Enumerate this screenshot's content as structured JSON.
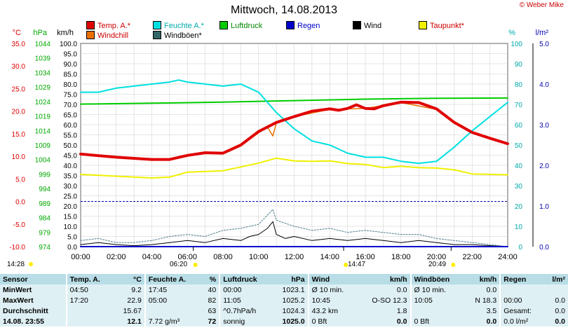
{
  "title": "Mittwoch, 14.08.2013",
  "copyright": "© Weber Mike",
  "legend": [
    {
      "label": "Temp. A.*",
      "color": "#e00000"
    },
    {
      "label": "Feuchte A.*",
      "color": "#00e0e0"
    },
    {
      "label": "Luftdruck",
      "color": "#00cc00"
    },
    {
      "label": "Regen",
      "color": "#0000cc"
    },
    {
      "label": "Wind",
      "color": "#000000"
    },
    {
      "label": "Taupunkt*",
      "color": "#f0f000"
    },
    {
      "label": "Windchill",
      "color": "#e87000"
    },
    {
      "label": "Windböen*",
      "color": "#336666"
    }
  ],
  "axis_headers": {
    "temp": "°C",
    "press": "hPa",
    "wind": "km/h",
    "hum": "%",
    "rain": "l/m²"
  },
  "chart_data": {
    "type": "line",
    "x_labels": [
      "00:00",
      "02:00",
      "04:00",
      "06:00",
      "08:00",
      "10:00",
      "12:00",
      "14:00",
      "16:00",
      "18:00",
      "20:00",
      "22:00",
      "24:00"
    ],
    "x_range_hours": [
      0,
      24
    ],
    "temp_axis": {
      "min": -10,
      "max": 35,
      "step": 5,
      "labels": [
        "-10.0",
        "-5.0",
        "0.0",
        "5.0",
        "10.0",
        "15.0",
        "20.0",
        "25.0",
        "30.0",
        "35.0"
      ]
    },
    "pressure_axis": {
      "labels": [
        "974",
        "979",
        "984",
        "989",
        "994",
        "999",
        "1004",
        "1009",
        "1014",
        "1019",
        "1024",
        "1029",
        "1034",
        "1039",
        "1044"
      ]
    },
    "wind_axis": {
      "min": 0,
      "max": 100,
      "step": 5
    },
    "humidity_axis": {
      "min": 0,
      "max": 100,
      "labels": [
        "0",
        "10",
        "20",
        "30",
        "40",
        "50",
        "60",
        "70",
        "80",
        "90",
        "100"
      ]
    },
    "rain_axis": {
      "labels": [
        "0.0",
        "1.0",
        "2.0",
        "3.0",
        "4.0",
        "5.0"
      ]
    },
    "series": [
      {
        "name": "Temp. A.*",
        "color": "#e00000",
        "axis": "temp",
        "width": 4,
        "points": [
          [
            0,
            10.5
          ],
          [
            2,
            9.8
          ],
          [
            4,
            9.3
          ],
          [
            5,
            9.3
          ],
          [
            6,
            10.2
          ],
          [
            7,
            10.8
          ],
          [
            8,
            10.7
          ],
          [
            9,
            12.5
          ],
          [
            10,
            15.5
          ],
          [
            11,
            17.5
          ],
          [
            12,
            18.8
          ],
          [
            13,
            20
          ],
          [
            14,
            20.5
          ],
          [
            14.5,
            20.2
          ],
          [
            15,
            20.6
          ],
          [
            15.5,
            21.4
          ],
          [
            16,
            20.6
          ],
          [
            16.5,
            20.5
          ],
          [
            17,
            21.2
          ],
          [
            18,
            22.0
          ],
          [
            19,
            21.9
          ],
          [
            20,
            20.5
          ],
          [
            21,
            17.5
          ],
          [
            22,
            15.3
          ],
          [
            23,
            14.0
          ],
          [
            24,
            12.8
          ]
        ]
      },
      {
        "name": "Windchill",
        "color": "#e87000",
        "axis": "temp",
        "width": 1.5,
        "points": [
          [
            9,
            12.4
          ],
          [
            10,
            15.2
          ],
          [
            10.5,
            16.5
          ],
          [
            10.8,
            14.5
          ],
          [
            11,
            17.4
          ],
          [
            12,
            18.8
          ],
          [
            14,
            20.4
          ],
          [
            16,
            20.6
          ],
          [
            18,
            21.9
          ],
          [
            20,
            20.4
          ],
          [
            21,
            17.4
          ],
          [
            22,
            15.2
          ],
          [
            24,
            12.7
          ]
        ]
      },
      {
        "name": "Feuchte A.*",
        "color": "#00e0e0",
        "axis": "hum",
        "width": 2,
        "points": [
          [
            0,
            76
          ],
          [
            1,
            76
          ],
          [
            2,
            78
          ],
          [
            3,
            79
          ],
          [
            4,
            80
          ],
          [
            5,
            81
          ],
          [
            5.5,
            82
          ],
          [
            6,
            81
          ],
          [
            7,
            80
          ],
          [
            8,
            79
          ],
          [
            9,
            80
          ],
          [
            10,
            76
          ],
          [
            11,
            66
          ],
          [
            12,
            58
          ],
          [
            13,
            52
          ],
          [
            14,
            50
          ],
          [
            15,
            46
          ],
          [
            16,
            44
          ],
          [
            17,
            44
          ],
          [
            18,
            42
          ],
          [
            19,
            41
          ],
          [
            20,
            42
          ],
          [
            21,
            49
          ],
          [
            22,
            57
          ],
          [
            23,
            64
          ],
          [
            24,
            71
          ]
        ]
      },
      {
        "name": "Luftdruck",
        "color": "#00cc00",
        "axis": "press",
        "width": 2,
        "points": [
          [
            0,
            1023.1
          ],
          [
            4,
            1023.4
          ],
          [
            8,
            1023.8
          ],
          [
            12,
            1024.3
          ],
          [
            16,
            1024.8
          ],
          [
            20,
            1025.1
          ],
          [
            24,
            1025.2
          ]
        ]
      },
      {
        "name": "Taupunkt*",
        "color": "#f0f000",
        "axis": "temp",
        "width": 2,
        "points": [
          [
            0,
            6.0
          ],
          [
            2,
            5.6
          ],
          [
            4,
            5.2
          ],
          [
            5,
            5.4
          ],
          [
            6,
            6.5
          ],
          [
            8,
            6.8
          ],
          [
            10,
            8.5
          ],
          [
            11,
            9.6
          ],
          [
            12,
            9.0
          ],
          [
            13,
            8.9
          ],
          [
            14,
            9.0
          ],
          [
            15,
            8.4
          ],
          [
            16,
            8.2
          ],
          [
            17,
            7.5
          ],
          [
            18,
            7.8
          ],
          [
            19,
            7.5
          ],
          [
            20,
            7.4
          ],
          [
            21,
            7.0
          ],
          [
            22,
            6.1
          ],
          [
            23,
            6.0
          ],
          [
            24,
            5.9
          ]
        ]
      },
      {
        "name": "Wind",
        "color": "#000000",
        "axis": "wind",
        "width": 1,
        "points": [
          [
            0,
            1
          ],
          [
            1,
            2
          ],
          [
            2,
            1
          ],
          [
            3,
            0.5
          ],
          [
            4,
            1
          ],
          [
            5,
            2
          ],
          [
            6,
            3
          ],
          [
            7,
            2
          ],
          [
            8,
            4
          ],
          [
            9,
            3
          ],
          [
            9.5,
            5
          ],
          [
            10,
            6
          ],
          [
            10.5,
            9
          ],
          [
            10.8,
            12.3
          ],
          [
            11,
            6
          ],
          [
            11.5,
            4
          ],
          [
            12,
            5
          ],
          [
            13,
            3
          ],
          [
            14,
            4
          ],
          [
            15,
            3
          ],
          [
            16,
            4
          ],
          [
            17,
            3
          ],
          [
            18,
            2
          ],
          [
            19,
            3
          ],
          [
            20,
            2
          ],
          [
            21,
            1
          ],
          [
            22,
            1
          ],
          [
            23,
            0.5
          ],
          [
            24,
            0
          ]
        ]
      },
      {
        "name": "Windböen*",
        "color": "#4a7a8a",
        "axis": "wind",
        "width": 1,
        "dash": "2,2",
        "points": [
          [
            0,
            3
          ],
          [
            1,
            4
          ],
          [
            2,
            2
          ],
          [
            3,
            2
          ],
          [
            4,
            3
          ],
          [
            5,
            5
          ],
          [
            6,
            6
          ],
          [
            7,
            5
          ],
          [
            8,
            8
          ],
          [
            9,
            9
          ],
          [
            10,
            11
          ],
          [
            10.8,
            18.3
          ],
          [
            11,
            13
          ],
          [
            12,
            10
          ],
          [
            13,
            8
          ],
          [
            14,
            9
          ],
          [
            15,
            7
          ],
          [
            16,
            8
          ],
          [
            17,
            7
          ],
          [
            18,
            6
          ],
          [
            19,
            6
          ],
          [
            20,
            4
          ],
          [
            21,
            3
          ],
          [
            22,
            2
          ],
          [
            23,
            1
          ],
          [
            24,
            0
          ]
        ]
      },
      {
        "name": "Regen",
        "color": "#0000cc",
        "axis": "rain",
        "width": 2,
        "points": [
          [
            0,
            0
          ],
          [
            24,
            0
          ]
        ]
      }
    ],
    "zero_line_temp": 0,
    "markers": [
      {
        "time": "14:28",
        "hour": 0
      },
      {
        "time": "06:20",
        "hour": 6.33
      },
      {
        "time": "14:47",
        "hour": 14.78
      },
      {
        "time": "20:49",
        "hour": 20.82
      }
    ]
  },
  "stats": {
    "headers": [
      "Sensor",
      "Temp. A.",
      "°C",
      "Feuchte A.",
      "%",
      "Luftdruck",
      "hPa",
      "Wind",
      "km/h",
      "Windböen",
      "km/h",
      "Regen",
      "l/m²"
    ],
    "rows": [
      [
        "MinWert",
        "04:50",
        "9.2",
        "17:45",
        "40",
        "00:00",
        "1023.1",
        "Ø 10 min.",
        "0.0",
        "Ø 10 min.",
        "0.0",
        "",
        ""
      ],
      [
        "MaxWert",
        "17:20",
        "22.9",
        "05:00",
        "82",
        "11:05",
        "1025.2",
        "10:45",
        "O-SO 12.3",
        "10:05",
        "N 18.3",
        "00:00",
        "0.0"
      ],
      [
        "Durchschnitt",
        "",
        "15.67",
        "",
        "63",
        "^0.7hPa/h",
        "1024.3",
        "43.2 km",
        "1.8",
        "",
        "3.5",
        "Gesamt:",
        "0.0"
      ],
      [
        "14.08.  23:55",
        "",
        "12.1",
        "7.72 g/m³",
        "72",
        "sonnig",
        "1025.0",
        "0 Bft",
        "0.0",
        "0 Bft",
        "0.0",
        "0.0 l/m²",
        "0.0"
      ]
    ]
  }
}
